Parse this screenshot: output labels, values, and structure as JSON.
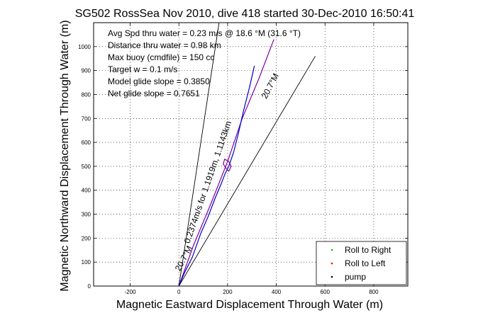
{
  "chart_data": {
    "type": "line",
    "title": "SG502 RossSea Nov 2010, dive 418 started 30-Dec-2010 16:50:41",
    "xlabel": "Magnetic Eastward Displacement Through Water (m)",
    "ylabel": "Magnetic Northward Displacement Through Water (m)",
    "xlim": [
      -350,
      940
    ],
    "ylim": [
      0,
      1100
    ],
    "xticks": [
      -200,
      0,
      200,
      400,
      600,
      800
    ],
    "yticks": [
      0,
      100,
      200,
      300,
      400,
      500,
      600,
      700,
      800,
      900,
      1000
    ],
    "grid": true,
    "legend_position": "bottom-right",
    "legend": [
      {
        "label": "Roll to Right",
        "color": "#00cc00",
        "marker": "dot"
      },
      {
        "label": "Roll to Left",
        "color": "#ff0000",
        "marker": "dot"
      },
      {
        "label": "pump",
        "color": "#000000",
        "marker": "dot"
      }
    ],
    "annotations": [
      "Avg Spd thru water =  0.23 m/s @  18.6   °M (31.6 °T)",
      "Distance thru water =  0.98 km",
      "Max buoy (cmdfile) = 150 cc",
      "Target w = 0.1 m/s",
      "Model glide slope = 0.3850",
      "Net glide slope = 0.7651"
    ],
    "line_labels": [
      {
        "text": "20.7°M",
        "x": 385,
        "y": 830,
        "angle": -62
      },
      {
        "text": "20.7°M",
        "x": 30,
        "y": 110,
        "angle": -62
      },
      {
        "text": "0.2374m/s for 1.1919m, 1.1143km",
        "x": 130,
        "y": 430,
        "angle": -71
      }
    ],
    "series": [
      {
        "name": "",
        "color": "#000000",
        "style": "line",
        "x": [
          0,
          165
        ],
        "y": [
          0,
          1100
        ]
      },
      {
        "name": "",
        "color": "#000000",
        "style": "line",
        "x": [
          0,
          560
        ],
        "y": [
          0,
          960
        ]
      },
      {
        "name": "",
        "color": "#8000a0",
        "style": "line",
        "x": [
          0,
          60,
          130,
          200,
          260,
          330,
          390
        ],
        "y": [
          0,
          170,
          340,
          520,
          700,
          870,
          1030
        ]
      },
      {
        "name": "",
        "color": "#0000cc",
        "style": "line",
        "x": [
          0,
          25,
          55,
          90,
          120,
          150,
          175,
          190,
          205,
          225,
          245,
          265,
          290,
          310
        ],
        "y": [
          0,
          60,
          120,
          220,
          290,
          370,
          430,
          470,
          500,
          560,
          640,
          730,
          830,
          920
        ]
      },
      {
        "name": "",
        "color": "#8000a0",
        "style": "line",
        "x": [
          195,
          182,
          188,
          205,
          215,
          205,
          195
        ],
        "y": [
          490,
          510,
          530,
          520,
          500,
          480,
          490
        ]
      }
    ]
  }
}
